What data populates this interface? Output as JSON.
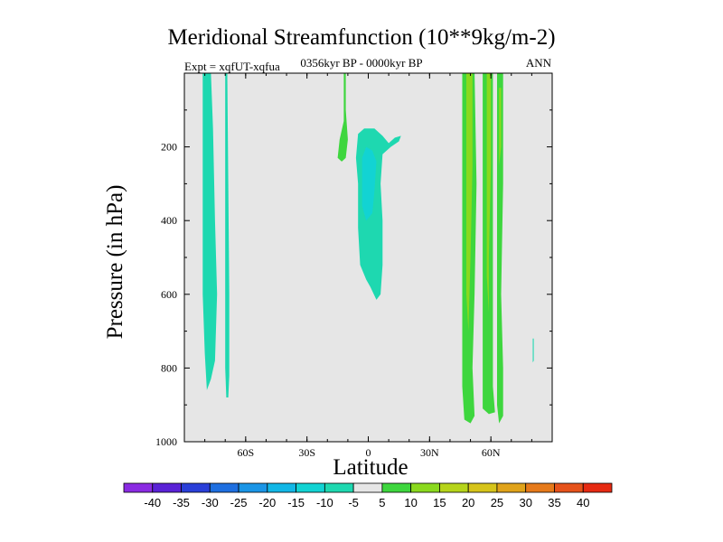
{
  "chart_data": {
    "type": "contour",
    "title": "Meridional Streamfunction (10**9kg/m-2)",
    "subtitle": "0356kyr BP - 0000kyr BP",
    "left_note": "Expt = xqfUT-xqfua",
    "right_note": "ANN",
    "xlabel": "Latitude",
    "ylabel": "Pressure (in hPa)",
    "xlim": [
      -90,
      90
    ],
    "ylim": [
      1000,
      0
    ],
    "x_ticks": [
      {
        "value": -60,
        "label": "60S"
      },
      {
        "value": -30,
        "label": "30S"
      },
      {
        "value": 0,
        "label": "0"
      },
      {
        "value": 30,
        "label": "30N"
      },
      {
        "value": 60,
        "label": "60N"
      }
    ],
    "y_ticks": [
      {
        "value": 200,
        "label": "200"
      },
      {
        "value": 400,
        "label": "400"
      },
      {
        "value": 600,
        "label": "600"
      },
      {
        "value": 800,
        "label": "800"
      },
      {
        "value": 1000,
        "label": "1000"
      }
    ],
    "background_color": "#e6e6e6",
    "colorbar": {
      "levels": [
        "-40",
        "-35",
        "-30",
        "-25",
        "-20",
        "-15",
        "-10",
        "-5",
        "5",
        "10",
        "15",
        "20",
        "25",
        "30",
        "35",
        "40"
      ],
      "colors": [
        "#8a2be2",
        "#5a22d6",
        "#2a3fd8",
        "#1e6fe0",
        "#1a95e6",
        "#12b7e6",
        "#12d3d3",
        "#1ed8b0",
        "#e6e6e6",
        "#3ed63e",
        "#8ad91e",
        "#b6d41a",
        "#d6c41a",
        "#e0a31a",
        "#e67a1a",
        "#e6521a",
        "#e62a12"
      ]
    },
    "regions": [
      {
        "name": "sh-high-lat-left",
        "color": "#1ed8b0",
        "points": [
          [
            -81,
            0
          ],
          [
            -77,
            0
          ],
          [
            -76,
            150
          ],
          [
            -75,
            400
          ],
          [
            -74,
            600
          ],
          [
            -75,
            780
          ],
          [
            -77,
            830
          ],
          [
            -79,
            860
          ],
          [
            -80,
            760
          ],
          [
            -81,
            600
          ],
          [
            -81,
            400
          ],
          [
            -81,
            150
          ]
        ]
      },
      {
        "name": "sh-high-lat-right",
        "color": "#1ed8b0",
        "points": [
          [
            -70,
            0
          ],
          [
            -69,
            0
          ],
          [
            -68.5,
            300
          ],
          [
            -68,
            600
          ],
          [
            -68,
            820
          ],
          [
            -68.5,
            880
          ],
          [
            -69.5,
            880
          ],
          [
            -70,
            800
          ],
          [
            -70,
            500
          ],
          [
            -70,
            200
          ]
        ]
      },
      {
        "name": "sh-tropics-upper",
        "color": "#3ed63e",
        "points": [
          [
            -12,
            0
          ],
          [
            -11,
            0
          ],
          [
            -11,
            100
          ],
          [
            -10,
            180
          ],
          [
            -11,
            230
          ],
          [
            -13,
            240
          ],
          [
            -15,
            230
          ],
          [
            -14,
            180
          ],
          [
            -12,
            130
          ]
        ]
      },
      {
        "name": "equatorial-outer",
        "color": "#1ed8b0",
        "points": [
          [
            -5,
            165
          ],
          [
            -2,
            150
          ],
          [
            3,
            150
          ],
          [
            7,
            170
          ],
          [
            10,
            190
          ],
          [
            13,
            175
          ],
          [
            16,
            170
          ],
          [
            15,
            185
          ],
          [
            11,
            200
          ],
          [
            7,
            220
          ],
          [
            6,
            300
          ],
          [
            7,
            400
          ],
          [
            7,
            520
          ],
          [
            6,
            600
          ],
          [
            4,
            615
          ],
          [
            1,
            580
          ],
          [
            -1,
            560
          ],
          [
            -4,
            520
          ],
          [
            -5,
            420
          ],
          [
            -5,
            300
          ],
          [
            -6,
            230
          ]
        ]
      },
      {
        "name": "equatorial-core",
        "color": "#12d3d3",
        "points": [
          [
            -3,
            230
          ],
          [
            -1,
            200
          ],
          [
            2,
            210
          ],
          [
            4,
            240
          ],
          [
            3,
            320
          ],
          [
            2,
            380
          ],
          [
            -1,
            400
          ],
          [
            -3,
            360
          ],
          [
            -3,
            300
          ]
        ]
      },
      {
        "name": "nh-band-a-outer",
        "color": "#3ed63e",
        "points": [
          [
            46,
            0
          ],
          [
            52,
            0
          ],
          [
            53,
            300
          ],
          [
            52,
            600
          ],
          [
            51,
            800
          ],
          [
            52,
            930
          ],
          [
            50,
            950
          ],
          [
            47,
            940
          ],
          [
            46,
            850
          ],
          [
            46,
            500
          ],
          [
            46,
            200
          ]
        ]
      },
      {
        "name": "nh-band-a-inner",
        "color": "#8ad91e",
        "points": [
          [
            48,
            0
          ],
          [
            51,
            0
          ],
          [
            51,
            250
          ],
          [
            50,
            500
          ],
          [
            49,
            700
          ],
          [
            48,
            600
          ],
          [
            48,
            300
          ]
        ]
      },
      {
        "name": "nh-band-b-outer",
        "color": "#3ed63e",
        "points": [
          [
            56,
            0
          ],
          [
            61,
            0
          ],
          [
            61,
            300
          ],
          [
            61,
            600
          ],
          [
            61,
            850
          ],
          [
            62,
            920
          ],
          [
            59,
            925
          ],
          [
            56,
            910
          ],
          [
            56,
            700
          ],
          [
            56,
            400
          ]
        ]
      },
      {
        "name": "nh-band-b-inner",
        "color": "#8ad91e",
        "points": [
          [
            58,
            0
          ],
          [
            60,
            0
          ],
          [
            60,
            250
          ],
          [
            59,
            500
          ],
          [
            59,
            650
          ],
          [
            58,
            550
          ],
          [
            58,
            200
          ]
        ]
      },
      {
        "name": "nh-band-c",
        "color": "#3ed63e",
        "points": [
          [
            63,
            0
          ],
          [
            66,
            0
          ],
          [
            66,
            300
          ],
          [
            65,
            600
          ],
          [
            66,
            800
          ],
          [
            66,
            930
          ],
          [
            64,
            950
          ],
          [
            63,
            900
          ],
          [
            63,
            700
          ],
          [
            63,
            400
          ]
        ]
      },
      {
        "name": "nh-band-c-inner",
        "color": "#8ad91e",
        "points": [
          [
            64,
            40
          ],
          [
            65,
            40
          ],
          [
            65,
            200
          ],
          [
            64,
            250
          ]
        ]
      },
      {
        "name": "nh-high-lat-sliver",
        "color": "#1ed8b0",
        "points": [
          [
            80.5,
            720
          ],
          [
            81,
            720
          ],
          [
            81,
            780
          ],
          [
            80.5,
            785
          ]
        ]
      }
    ]
  }
}
